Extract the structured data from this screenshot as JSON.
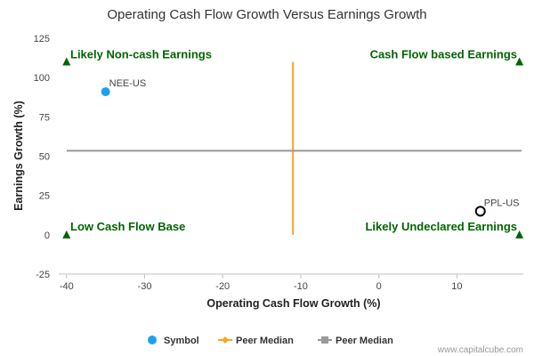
{
  "chart_data": {
    "type": "scatter",
    "title": "Operating Cash Flow Growth Versus Earnings Growth",
    "xlabel": "Operating Cash Flow Growth (%)",
    "ylabel": "Earnings Growth (%)",
    "xlim": [
      -41,
      18.5
    ],
    "ylim": [
      -25,
      125
    ],
    "xticks": [
      -40,
      -30,
      -20,
      -10,
      0,
      10
    ],
    "yticks": [
      -25,
      0,
      25,
      50,
      75,
      100,
      125
    ],
    "points": [
      {
        "label": "NEE-US",
        "x": -35,
        "y": 91,
        "style": "filled",
        "color": "#1ea0f0"
      },
      {
        "label": "PPL-US",
        "x": 13,
        "y": 15,
        "style": "hollow",
        "color": "#000000"
      }
    ],
    "peer_median_x": -11,
    "peer_median_x_range": [
      0,
      110
    ],
    "peer_median_y": 53.5,
    "quadrant_labels": [
      {
        "text": "Likely Non-cash Earnings",
        "corner": "top-left"
      },
      {
        "text": "Cash Flow based Earnings",
        "corner": "top-right"
      },
      {
        "text": "Low Cash Flow Base",
        "corner": "bottom-left"
      },
      {
        "text": "Likely Undeclared Earnings",
        "corner": "bottom-right"
      }
    ],
    "markers": [
      {
        "x": -40,
        "y": 110
      },
      {
        "x": 18,
        "y": 110
      },
      {
        "x": -40,
        "y": 0
      },
      {
        "x": 18,
        "y": 0
      }
    ],
    "legend": [
      {
        "name": "Symbol",
        "color": "#1ea0f0",
        "marker": "circle"
      },
      {
        "name": "Peer Median",
        "color": "#f5a623",
        "marker": "diamond-line"
      },
      {
        "name": "Peer Median",
        "color": "#999999",
        "marker": "square-line"
      }
    ],
    "legend_position": "bottom-center"
  },
  "colors": {
    "median_x": "#f5a623",
    "median_y": "#999999",
    "quadrant_text": "#006400",
    "marker": "#006400"
  },
  "credit": "www.capitalcube.com"
}
